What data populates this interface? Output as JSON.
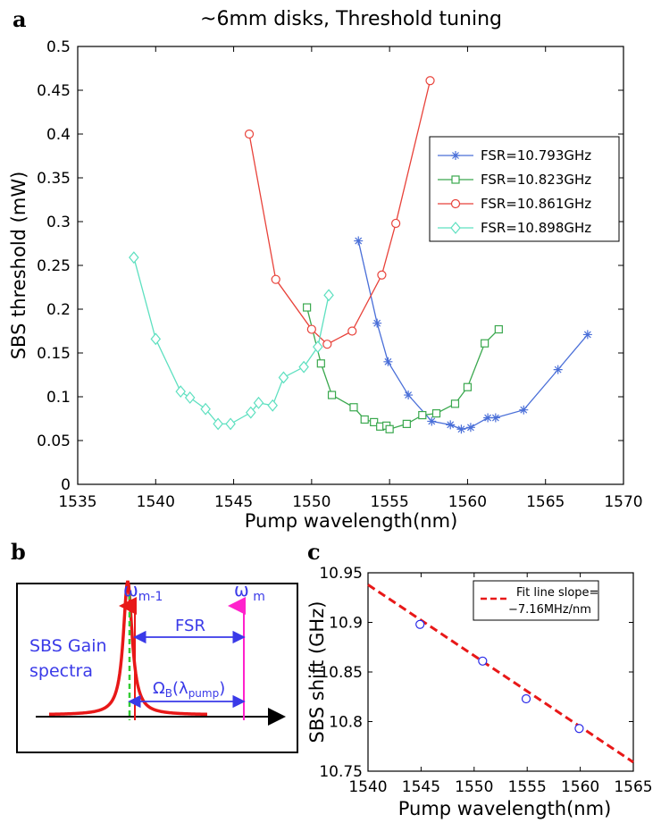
{
  "panel_labels": {
    "a": "a",
    "b": "b",
    "c": "c"
  },
  "chart_data": [
    {
      "type": "line",
      "title": "~6mm disks, Threshold tuning",
      "xlabel": "Pump wavelength(nm)",
      "ylabel": "SBS threshold (mW)",
      "xlim": [
        1535,
        1570
      ],
      "ylim": [
        0,
        0.5
      ],
      "xticks": [
        "1535",
        "1540",
        "1545",
        "1550",
        "1555",
        "1560",
        "1565",
        "1570"
      ],
      "yticks": [
        "0",
        "0.05",
        "0.1",
        "0.15",
        "0.2",
        "0.25",
        "0.3",
        "0.35",
        "0.4",
        "0.45",
        "0.5"
      ],
      "legend_position": "upper-right",
      "series": [
        {
          "name": "FSR=10.793GHz",
          "color": "#4a6fd8",
          "marker": "star",
          "x": [
            1553.0,
            1554.2,
            1554.9,
            1556.2,
            1557.7,
            1558.9,
            1559.6,
            1560.2,
            1561.3,
            1561.8,
            1563.6,
            1565.8,
            1567.7
          ],
          "y": [
            0.278,
            0.184,
            0.14,
            0.102,
            0.072,
            0.068,
            0.063,
            0.065,
            0.076,
            0.076,
            0.085,
            0.131,
            0.171
          ]
        },
        {
          "name": "FSR=10.823GHz",
          "color": "#3aa84e",
          "marker": "square",
          "x": [
            1549.7,
            1550.6,
            1551.3,
            1552.7,
            1553.4,
            1554.0,
            1554.4,
            1554.8,
            1555.0,
            1556.1,
            1557.1,
            1558.0,
            1559.2,
            1560.0,
            1561.1,
            1562.0
          ],
          "y": [
            0.202,
            0.138,
            0.102,
            0.088,
            0.074,
            0.071,
            0.066,
            0.067,
            0.063,
            0.069,
            0.079,
            0.081,
            0.092,
            0.111,
            0.161,
            0.177
          ]
        },
        {
          "name": "FSR=10.861GHz",
          "color": "#e8423a",
          "marker": "circle",
          "x": [
            1546.0,
            1547.7,
            1550.0,
            1551.0,
            1552.6,
            1554.5,
            1555.4,
            1557.6
          ],
          "y": [
            0.4,
            0.234,
            0.177,
            0.16,
            0.175,
            0.239,
            0.298,
            0.461
          ]
        },
        {
          "name": "FSR=10.898GHz",
          "color": "#5ee0c0",
          "marker": "diamond",
          "x": [
            1538.6,
            1540.0,
            1541.6,
            1542.2,
            1543.2,
            1544.0,
            1544.8,
            1546.1,
            1546.6,
            1547.5,
            1548.2,
            1549.5,
            1550.4,
            1551.1
          ],
          "y": [
            0.259,
            0.166,
            0.106,
            0.099,
            0.086,
            0.069,
            0.069,
            0.082,
            0.093,
            0.09,
            0.122,
            0.134,
            0.157,
            0.216
          ]
        }
      ]
    },
    {
      "type": "scatter",
      "xlabel": "Pump wavelength(nm)",
      "ylabel": "SBS shift (GHz)",
      "xlim": [
        1540,
        1565
      ],
      "ylim": [
        10.75,
        10.95
      ],
      "xticks": [
        "1540",
        "1545",
        "1550",
        "1555",
        "1560",
        "1565"
      ],
      "yticks": [
        "10.75",
        "10.8",
        "10.85",
        "10.9",
        "10.95"
      ],
      "legend_position": "upper-right",
      "legend_lines": [
        "Fit line slope=",
        "−7.16MHz/nm"
      ],
      "points_color": "#2a2ae8",
      "fit_color": "#e81818",
      "points": {
        "x": [
          1544.9,
          1550.8,
          1554.9,
          1559.9
        ],
        "y": [
          10.898,
          10.861,
          10.823,
          10.793
        ]
      },
      "fit": {
        "slope_per_nm": -0.00716,
        "intercept_at_1540": 10.938
      }
    }
  ],
  "diagram": {
    "gain_label_line1": "SBS Gain",
    "gain_label_line2": "spectra",
    "omega_m1_base": "ω",
    "omega_m1_sub": "m-1",
    "omega_m_base": "ω",
    "omega_m_sub": " m",
    "fsr_label": "FSR",
    "omega_b_base": "Ω",
    "omega_b_sub": "B",
    "omega_b_lambda_open": "(λ",
    "omega_b_lambda_sub": "pump",
    "omega_b_close": ")",
    "colors": {
      "gain": "#e81818",
      "pump_line": "#33cc33",
      "omega_m": "#ff22cc",
      "arrow": "#3a3ae8"
    }
  }
}
